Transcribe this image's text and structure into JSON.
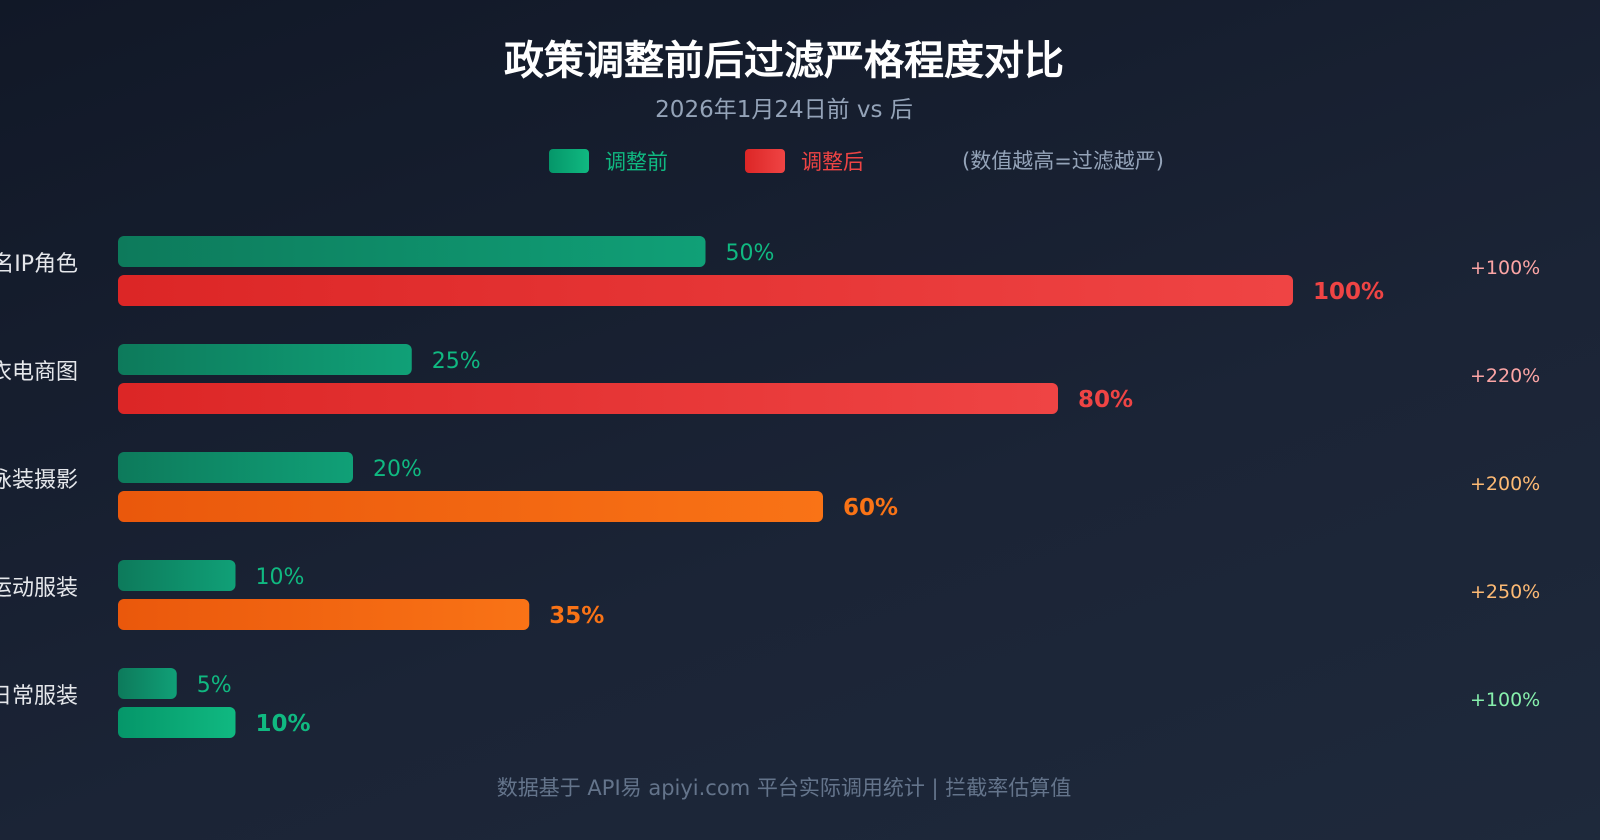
{
  "title": "政策调整前后过滤严格程度对比",
  "subtitle": "2026年1月24日前 vs 后",
  "legend": {
    "before": "调整前",
    "after": "调整后",
    "note": "(数值越高=过滤越严)"
  },
  "footer": "数据基于 API易 apiyi.com 平台实际调用统计 | 拦截率估算值",
  "colors": {
    "before": "#10b981",
    "after_red": "#ef4444",
    "after_orange": "#f97316",
    "after_green": "#10b981"
  },
  "chart_data": {
    "type": "bar",
    "orientation": "horizontal",
    "unit": "%",
    "xlim": [
      0,
      100
    ],
    "categories": [
      "知名IP角色",
      "内衣电商图",
      "泳装摄影",
      "运动服装",
      "日常服装"
    ],
    "series": [
      {
        "name": "调整前",
        "values": [
          50,
          25,
          20,
          10,
          5
        ]
      },
      {
        "name": "调整后",
        "values": [
          100,
          80,
          60,
          35,
          10
        ]
      }
    ],
    "after_color_level": [
      "red",
      "red",
      "orange",
      "orange",
      "green"
    ],
    "change_labels": [
      "+100%",
      "+220%",
      "+200%",
      "+250%",
      "+100%"
    ]
  }
}
